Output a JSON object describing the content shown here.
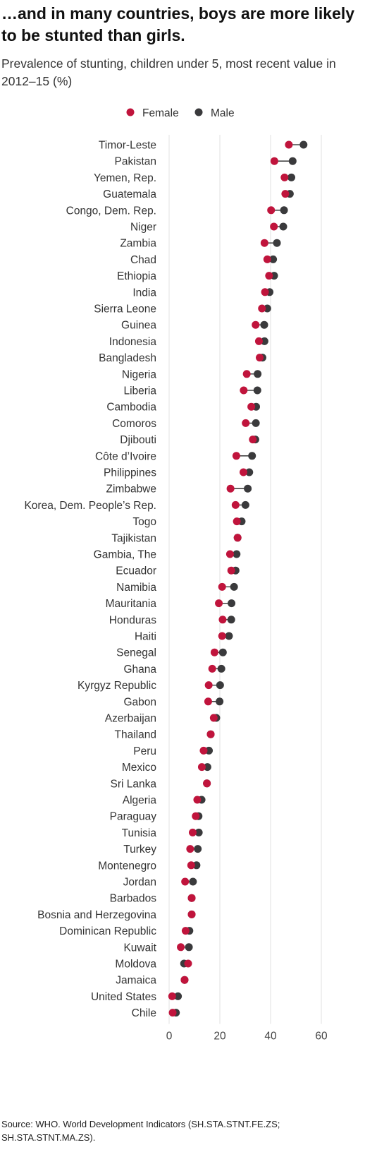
{
  "title": "…and in many countries, boys are more likely to be stunted than girls.",
  "subtitle": "Prevalence of stunting, children under 5, most recent value in 2012–15 (%)",
  "source": "Source: WHO. World Development Indicators (SH.STA.STNT.FE.ZS; SH.STA.STNT.MA.ZS).",
  "colors": {
    "female": "#c0143c",
    "male": "#3a3a3c",
    "grid": "#e6e6e6",
    "connector": "#222222"
  },
  "chart_data": {
    "type": "scatter",
    "subtype": "dumbbell",
    "title": "…and in many countries, boys are more likely to be stunted than girls.",
    "xlabel": "",
    "ylabel": "",
    "xlim": [
      0,
      60
    ],
    "xticks": [
      0,
      20,
      40,
      60
    ],
    "grid": true,
    "legend_position": "top",
    "legend": [
      "Female",
      "Male"
    ],
    "categories": [
      "Timor-Leste",
      "Pakistan",
      "Yemen, Rep.",
      "Guatemala",
      "Congo, Dem. Rep.",
      "Niger",
      "Zambia",
      "Chad",
      "Ethiopia",
      "India",
      "Sierra Leone",
      "Guinea",
      "Indonesia",
      "Bangladesh",
      "Nigeria",
      "Liberia",
      "Cambodia",
      "Comoros",
      "Djibouti",
      "Côte d’Ivoire",
      "Philippines",
      "Zimbabwe",
      "Korea, Dem. People’s Rep.",
      "Togo",
      "Tajikistan",
      "Gambia, The",
      "Ecuador",
      "Namibia",
      "Mauritania",
      "Honduras",
      "Haiti",
      "Senegal",
      "Ghana",
      "Kyrgyz Republic",
      "Gabon",
      "Azerbaijan",
      "Thailand",
      "Peru",
      "Mexico",
      "Sri Lanka",
      "Algeria",
      "Paraguay",
      "Tunisia",
      "Turkey",
      "Montenegro",
      "Jordan",
      "Barbados",
      "Bosnia and Herzegovina",
      "Dominican Republic",
      "Kuwait",
      "Moldova",
      "Jamaica",
      "United States",
      "Chile"
    ],
    "series": [
      {
        "name": "Female",
        "values": [
          47.2,
          41.5,
          45.5,
          45.8,
          40.2,
          41.3,
          37.6,
          38.7,
          39.4,
          37.8,
          36.6,
          34.1,
          35.4,
          35.7,
          30.6,
          29.4,
          32.4,
          30.2,
          33.0,
          26.5,
          29.3,
          24.2,
          26.2,
          26.7,
          27.0,
          24.0,
          24.5,
          20.9,
          19.6,
          21.1,
          20.9,
          17.9,
          17.0,
          15.6,
          15.4,
          17.6,
          16.4,
          13.6,
          12.9,
          14.9,
          11.1,
          10.5,
          9.3,
          8.3,
          8.7,
          6.3,
          8.9,
          8.9,
          6.5,
          4.6,
          7.5,
          6.1,
          1.2,
          1.4
        ]
      },
      {
        "name": "Male",
        "values": [
          53.0,
          48.7,
          48.2,
          47.6,
          45.3,
          45.0,
          42.5,
          41.0,
          41.4,
          39.6,
          38.7,
          37.5,
          37.6,
          36.8,
          34.9,
          34.8,
          34.3,
          34.2,
          34.0,
          32.7,
          31.6,
          31.0,
          30.1,
          28.6,
          27.0,
          26.6,
          26.2,
          25.6,
          24.6,
          24.5,
          23.6,
          21.2,
          20.6,
          20.1,
          19.9,
          18.6,
          16.4,
          15.7,
          15.1,
          14.9,
          12.8,
          11.6,
          11.7,
          11.3,
          10.8,
          9.4,
          8.9,
          8.9,
          8.0,
          7.8,
          5.9,
          6.1,
          3.5,
          2.7
        ]
      }
    ]
  }
}
